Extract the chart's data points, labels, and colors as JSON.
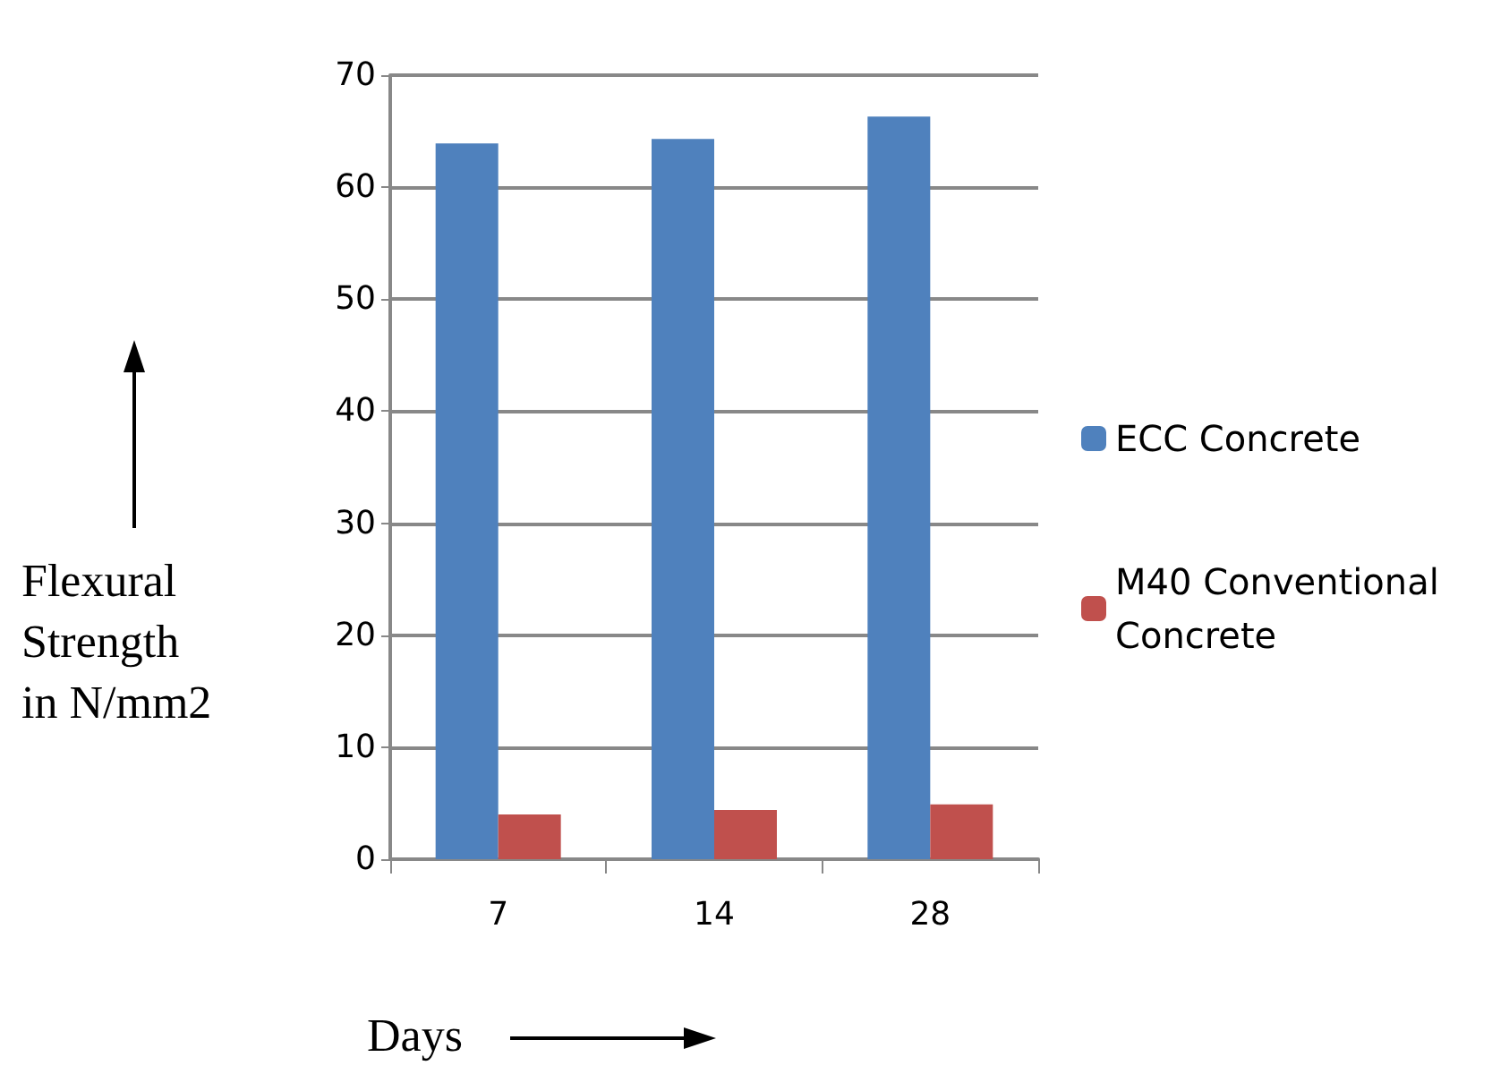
{
  "chart_data": {
    "type": "bar",
    "xlabel": "Days",
    "ylabel": "Flexural Strength in N/mm2",
    "categories": [
      "7",
      "14",
      "28"
    ],
    "series": [
      {
        "name": "ECC Concrete",
        "color": "#4f81bd",
        "values": [
          63.9,
          64.3,
          66.3
        ]
      },
      {
        "name": "M40 Conventional Concrete",
        "color": "#c0504d",
        "values": [
          4.0,
          4.4,
          4.9
        ]
      }
    ],
    "ylim": [
      0,
      70
    ],
    "yticks": [
      0,
      10,
      20,
      30,
      40,
      50,
      60,
      70
    ],
    "grid": "y",
    "legend": "right"
  }
}
